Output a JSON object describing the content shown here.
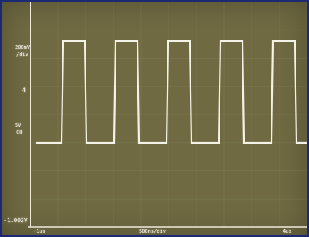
{
  "scope": {
    "left_readout": {
      "scale": "200mV",
      "per_div": "/div",
      "trigger_mark": "4",
      "coupling": "5V",
      "channel": "CH"
    },
    "bottom_readout": {
      "offset": "-1.002V",
      "time_scale": "500ns/div",
      "left_time": "-1us",
      "right_time": "4us"
    },
    "colors": {
      "background": "#6f6a42",
      "trace": "#f4f2e6",
      "bezel": "#1c2a73"
    },
    "signal": {
      "type": "square",
      "cycles_visible": 5,
      "duty_cycle": 0.5
    }
  }
}
